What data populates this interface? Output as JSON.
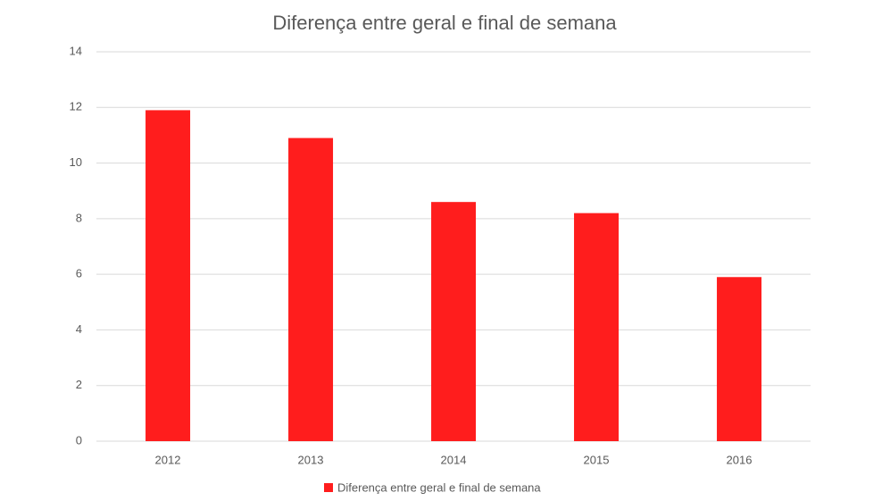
{
  "chart_data": {
    "type": "bar",
    "title": "Diferença entre geral e final de semana",
    "categories": [
      "2012",
      "2013",
      "2014",
      "2015",
      "2016"
    ],
    "series": [
      {
        "name": "Diferença entre geral e final de semana",
        "color": "#ff1d1d",
        "values": [
          11.9,
          10.9,
          8.6,
          8.2,
          5.9
        ]
      }
    ],
    "ylim": [
      0,
      14
    ],
    "yticks": [
      0,
      2,
      4,
      6,
      8,
      10,
      12,
      14
    ],
    "grid": true,
    "legend": "bottom"
  }
}
